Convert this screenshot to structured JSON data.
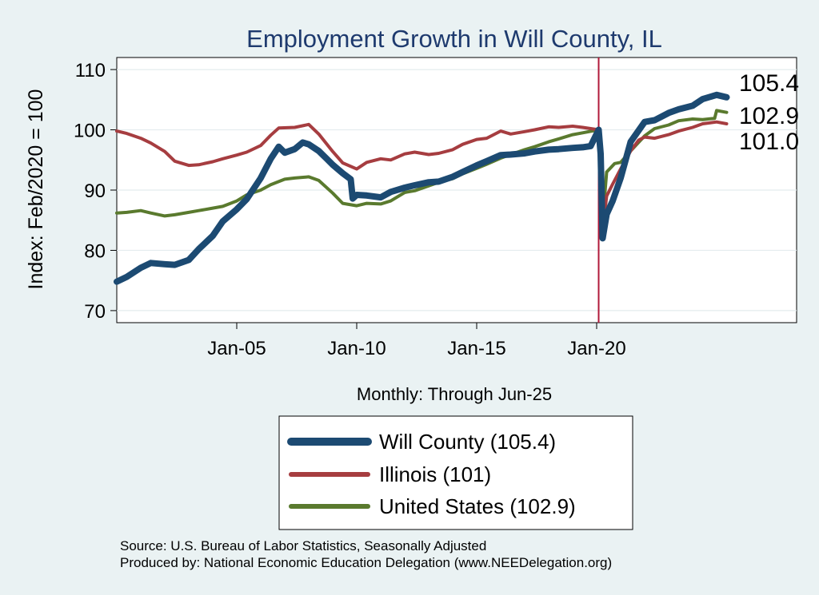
{
  "chart_data": {
    "type": "line",
    "title": "Employment Growth in Will  County, IL",
    "xlabel": "Monthly: Through Jun-25",
    "ylabel": "Index: Feb/2020 = 100",
    "ylim": [
      68,
      112
    ],
    "xlim": [
      "2000-01",
      "2028-05"
    ],
    "y_ticks": [
      70,
      80,
      90,
      100,
      110
    ],
    "x_ticks": [
      {
        "label": "Jan-05",
        "date": "2005-01"
      },
      {
        "label": "Jan-10",
        "date": "2010-01"
      },
      {
        "label": "Jan-15",
        "date": "2015-01"
      },
      {
        "label": "Jan-20",
        "date": "2020-01"
      }
    ],
    "grid": true,
    "reference_line": {
      "date": "2020-02",
      "color": "#b0193a"
    },
    "end_labels": [
      "105.4",
      "102.9",
      "101.0"
    ],
    "legend": {
      "position": "bottom"
    },
    "series": [
      {
        "name": "Will  County (105.4)",
        "color": "#1c4a72",
        "width": 8,
        "points": [
          [
            "2000-01",
            74.8
          ],
          [
            "2000-06",
            75.6
          ],
          [
            "2001-01",
            77.1
          ],
          [
            "2001-06",
            77.9
          ],
          [
            "2002-01",
            77.7
          ],
          [
            "2002-06",
            77.6
          ],
          [
            "2003-01",
            78.4
          ],
          [
            "2003-06",
            80.2
          ],
          [
            "2004-01",
            82.4
          ],
          [
            "2004-06",
            84.8
          ],
          [
            "2005-01",
            86.8
          ],
          [
            "2005-06",
            88.5
          ],
          [
            "2006-01",
            92.0
          ],
          [
            "2006-06",
            95.2
          ],
          [
            "2006-10",
            97.2
          ],
          [
            "2007-01",
            96.2
          ],
          [
            "2007-06",
            96.8
          ],
          [
            "2007-10",
            97.9
          ],
          [
            "2008-01",
            97.6
          ],
          [
            "2008-06",
            96.5
          ],
          [
            "2008-10",
            95.2
          ],
          [
            "2009-01",
            94.2
          ],
          [
            "2009-06",
            92.8
          ],
          [
            "2009-10",
            91.8
          ],
          [
            "2009-11",
            88.6
          ],
          [
            "2010-01",
            89.2
          ],
          [
            "2010-06",
            89.1
          ],
          [
            "2011-01",
            88.8
          ],
          [
            "2011-06",
            89.7
          ],
          [
            "2012-01",
            90.4
          ],
          [
            "2012-06",
            90.8
          ],
          [
            "2013-01",
            91.3
          ],
          [
            "2013-06",
            91.4
          ],
          [
            "2014-01",
            92.2
          ],
          [
            "2014-06",
            93.0
          ],
          [
            "2015-01",
            94.1
          ],
          [
            "2015-06",
            94.8
          ],
          [
            "2016-01",
            95.8
          ],
          [
            "2016-06",
            95.9
          ],
          [
            "2017-01",
            96.1
          ],
          [
            "2017-06",
            96.4
          ],
          [
            "2018-01",
            96.7
          ],
          [
            "2018-06",
            96.8
          ],
          [
            "2019-01",
            97.0
          ],
          [
            "2019-06",
            97.1
          ],
          [
            "2019-10",
            97.3
          ],
          [
            "2020-02",
            100.0
          ],
          [
            "2020-03",
            96.0
          ],
          [
            "2020-04",
            82.0
          ],
          [
            "2020-06",
            86.0
          ],
          [
            "2020-09",
            88.2
          ],
          [
            "2021-01",
            92.0
          ],
          [
            "2021-06",
            98.0
          ],
          [
            "2022-01",
            101.3
          ],
          [
            "2022-06",
            101.6
          ],
          [
            "2023-01",
            102.8
          ],
          [
            "2023-06",
            103.4
          ],
          [
            "2024-01",
            104.0
          ],
          [
            "2024-06",
            105.1
          ],
          [
            "2025-01",
            105.8
          ],
          [
            "2025-06",
            105.4
          ]
        ]
      },
      {
        "name": "Illinois (101)",
        "color": "#a63d40",
        "width": 4,
        "points": [
          [
            "2000-01",
            99.8
          ],
          [
            "2000-06",
            99.4
          ],
          [
            "2001-01",
            98.6
          ],
          [
            "2001-06",
            97.8
          ],
          [
            "2002-01",
            96.4
          ],
          [
            "2002-06",
            94.8
          ],
          [
            "2003-01",
            94.1
          ],
          [
            "2003-06",
            94.2
          ],
          [
            "2004-01",
            94.7
          ],
          [
            "2004-06",
            95.2
          ],
          [
            "2005-01",
            95.8
          ],
          [
            "2005-06",
            96.3
          ],
          [
            "2006-01",
            97.4
          ],
          [
            "2006-06",
            99.1
          ],
          [
            "2006-10",
            100.3
          ],
          [
            "2007-06",
            100.4
          ],
          [
            "2008-01",
            100.9
          ],
          [
            "2008-06",
            99.3
          ],
          [
            "2009-01",
            96.4
          ],
          [
            "2009-06",
            94.5
          ],
          [
            "2010-01",
            93.5
          ],
          [
            "2010-06",
            94.6
          ],
          [
            "2011-01",
            95.2
          ],
          [
            "2011-06",
            95.0
          ],
          [
            "2012-01",
            96.0
          ],
          [
            "2012-06",
            96.3
          ],
          [
            "2013-01",
            95.9
          ],
          [
            "2013-06",
            96.1
          ],
          [
            "2014-01",
            96.7
          ],
          [
            "2014-06",
            97.6
          ],
          [
            "2015-01",
            98.4
          ],
          [
            "2015-06",
            98.6
          ],
          [
            "2016-01",
            99.8
          ],
          [
            "2016-06",
            99.3
          ],
          [
            "2017-01",
            99.7
          ],
          [
            "2017-06",
            100.0
          ],
          [
            "2018-01",
            100.5
          ],
          [
            "2018-06",
            100.4
          ],
          [
            "2019-01",
            100.6
          ],
          [
            "2019-06",
            100.4
          ],
          [
            "2020-02",
            100.0
          ],
          [
            "2020-04",
            83.5
          ],
          [
            "2020-06",
            89.0
          ],
          [
            "2020-09",
            91.0
          ],
          [
            "2021-01",
            93.5
          ],
          [
            "2021-06",
            96.5
          ],
          [
            "2021-10",
            98.3
          ],
          [
            "2022-01",
            98.8
          ],
          [
            "2022-06",
            98.6
          ],
          [
            "2023-01",
            99.2
          ],
          [
            "2023-06",
            99.8
          ],
          [
            "2024-01",
            100.4
          ],
          [
            "2024-06",
            101.0
          ],
          [
            "2025-01",
            101.3
          ],
          [
            "2025-06",
            101.0
          ]
        ]
      },
      {
        "name": "United States (102.9)",
        "color": "#5a7a2e",
        "width": 4,
        "points": [
          [
            "2000-01",
            86.2
          ],
          [
            "2000-06",
            86.3
          ],
          [
            "2001-01",
            86.6
          ],
          [
            "2001-06",
            86.2
          ],
          [
            "2002-01",
            85.7
          ],
          [
            "2002-06",
            85.9
          ],
          [
            "2003-01",
            86.3
          ],
          [
            "2003-06",
            86.6
          ],
          [
            "2004-01",
            87.0
          ],
          [
            "2004-06",
            87.3
          ],
          [
            "2005-01",
            88.2
          ],
          [
            "2005-06",
            89.2
          ],
          [
            "2006-01",
            90.0
          ],
          [
            "2006-06",
            90.9
          ],
          [
            "2007-01",
            91.8
          ],
          [
            "2007-06",
            92.0
          ],
          [
            "2008-01",
            92.2
          ],
          [
            "2008-06",
            91.6
          ],
          [
            "2009-01",
            89.5
          ],
          [
            "2009-06",
            87.8
          ],
          [
            "2010-01",
            87.4
          ],
          [
            "2010-06",
            87.8
          ],
          [
            "2011-01",
            87.7
          ],
          [
            "2011-06",
            88.2
          ],
          [
            "2012-01",
            89.6
          ],
          [
            "2012-06",
            89.9
          ],
          [
            "2013-01",
            90.7
          ],
          [
            "2013-06",
            91.3
          ],
          [
            "2014-01",
            91.9
          ],
          [
            "2014-06",
            92.7
          ],
          [
            "2015-01",
            93.6
          ],
          [
            "2015-06",
            94.3
          ],
          [
            "2016-01",
            95.3
          ],
          [
            "2016-06",
            95.9
          ],
          [
            "2017-01",
            96.7
          ],
          [
            "2017-06",
            97.2
          ],
          [
            "2018-01",
            98.0
          ],
          [
            "2018-06",
            98.5
          ],
          [
            "2019-01",
            99.2
          ],
          [
            "2019-06",
            99.5
          ],
          [
            "2020-02",
            100.0
          ],
          [
            "2020-04",
            85.0
          ],
          [
            "2020-06",
            93.0
          ],
          [
            "2020-10",
            94.4
          ],
          [
            "2021-01",
            94.6
          ],
          [
            "2021-06",
            96.5
          ],
          [
            "2022-01",
            99.0
          ],
          [
            "2022-06",
            100.2
          ],
          [
            "2023-01",
            100.8
          ],
          [
            "2023-06",
            101.5
          ],
          [
            "2024-01",
            101.8
          ],
          [
            "2024-06",
            101.7
          ],
          [
            "2024-12",
            101.9
          ],
          [
            "2025-01",
            103.2
          ],
          [
            "2025-06",
            102.9
          ]
        ]
      }
    ]
  },
  "source_lines": [
    "Source: U.S. Bureau of Labor Statistics, Seasonally Adjusted",
    "Produced by: National Economic Education Delegation (www.NEEDelegation.org)"
  ]
}
